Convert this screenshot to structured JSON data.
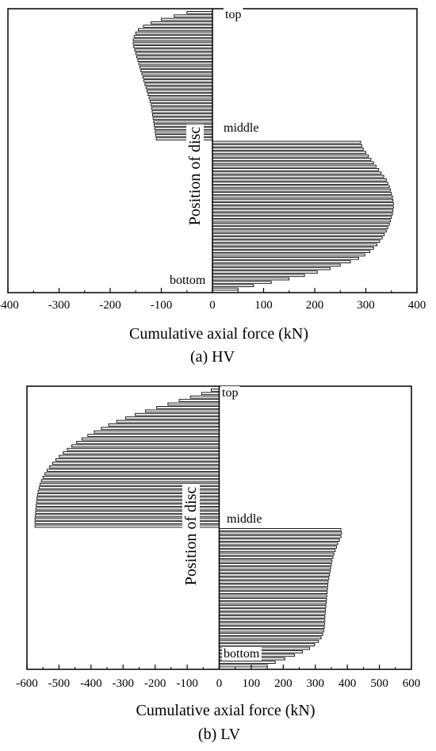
{
  "chart_data": [
    {
      "type": "bar",
      "orientation": "horizontal",
      "caption": "(a) HV",
      "xlabel": "Cumulative axial force (kN)",
      "ylabel": "Position of disc",
      "xlim": [
        -400,
        400
      ],
      "xticks": [
        -400,
        -300,
        -200,
        -100,
        0,
        100,
        200,
        300,
        400
      ],
      "annotations": {
        "top": "top",
        "middle": "middle",
        "bottom": "bottom"
      },
      "values_top_to_bottom": [
        -50,
        -75,
        -100,
        -120,
        -135,
        -145,
        -150,
        -153,
        -155,
        -155,
        -154,
        -152,
        -150,
        -148,
        -146,
        -144,
        -142,
        -140,
        -138,
        -136,
        -134,
        -132,
        -130,
        -128,
        -126,
        -124,
        -122,
        -120,
        -119,
        -118,
        -117,
        -116,
        -115,
        -114,
        -113,
        -112,
        -111,
        -110,
        290,
        292,
        295,
        300,
        305,
        310,
        315,
        320,
        325,
        330,
        335,
        340,
        343,
        346,
        348,
        350,
        352,
        353,
        354,
        354,
        353,
        352,
        350,
        348,
        346,
        343,
        340,
        336,
        332,
        327,
        322,
        315,
        308,
        298,
        286,
        270,
        250,
        230,
        205,
        180,
        150,
        115,
        80,
        50
      ]
    },
    {
      "type": "bar",
      "orientation": "horizontal",
      "caption": "(b) LV",
      "xlabel": "Cumulative axial force (kN)",
      "ylabel": "Position of disc",
      "xlim": [
        -600,
        600
      ],
      "xticks": [
        -600,
        -500,
        -400,
        -300,
        -200,
        -100,
        0,
        100,
        200,
        300,
        400,
        500,
        600
      ],
      "annotations": {
        "top": "top",
        "middle": "middle",
        "bottom": "bottom"
      },
      "values_top_to_bottom": [
        -25,
        -55,
        -90,
        -125,
        -160,
        -195,
        -230,
        -262,
        -292,
        -320,
        -345,
        -368,
        -390,
        -410,
        -428,
        -445,
        -460,
        -474,
        -487,
        -499,
        -510,
        -520,
        -529,
        -537,
        -544,
        -550,
        -555,
        -559,
        -562,
        -565,
        -567,
        -569,
        -570,
        -571,
        -572,
        -573,
        -574,
        -575,
        -575,
        -575,
        380,
        382,
        380,
        375,
        370,
        366,
        362,
        358,
        355,
        352,
        350,
        348,
        346,
        344,
        342,
        340,
        339,
        338,
        337,
        336,
        335,
        334,
        333,
        332,
        331,
        330,
        330,
        329,
        328,
        326,
        323,
        318,
        310,
        298,
        282,
        260,
        235,
        205,
        175,
        150
      ]
    }
  ]
}
